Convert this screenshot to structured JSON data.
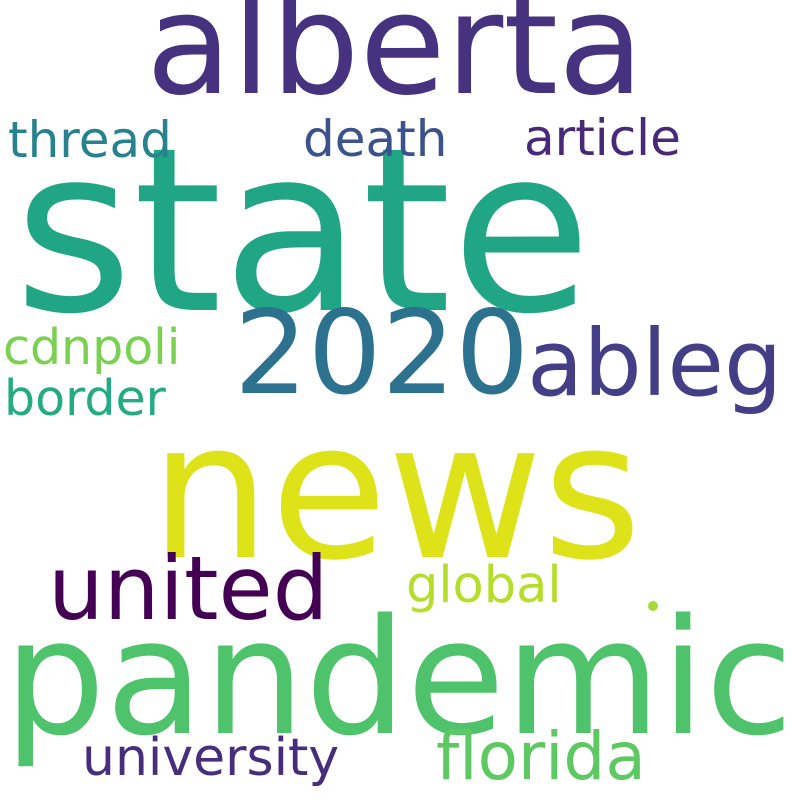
{
  "cloud": {
    "words": {
      "state": {
        "text": "state",
        "color": "#21a685"
      },
      "alberta": {
        "text": "alberta",
        "color": "#46327e"
      },
      "news": {
        "text": "news",
        "color": "#dde318"
      },
      "pandemic": {
        "text": "pandemic",
        "color": "#4ec36b"
      },
      "y2020": {
        "text": "2020",
        "color": "#2c718e"
      },
      "ableg": {
        "text": "ableg",
        "color": "#433e85"
      },
      "united": {
        "text": "united",
        "color": "#440154"
      },
      "thread": {
        "text": "thread",
        "color": "#26828e"
      },
      "death": {
        "text": "death",
        "color": "#3b528b"
      },
      "article": {
        "text": "article",
        "color": "#482878"
      },
      "cdnpoli": {
        "text": "cdnpoli",
        "color": "#7ad151"
      },
      "border": {
        "text": "border",
        "color": "#25ab82"
      },
      "global": {
        "text": "global",
        "color": "#b5de2b"
      },
      "university": {
        "text": "university",
        "color": "#472d7b"
      },
      "florida": {
        "text": "florida",
        "color": "#5ec962"
      }
    },
    "dot_color": "#a5db36"
  }
}
